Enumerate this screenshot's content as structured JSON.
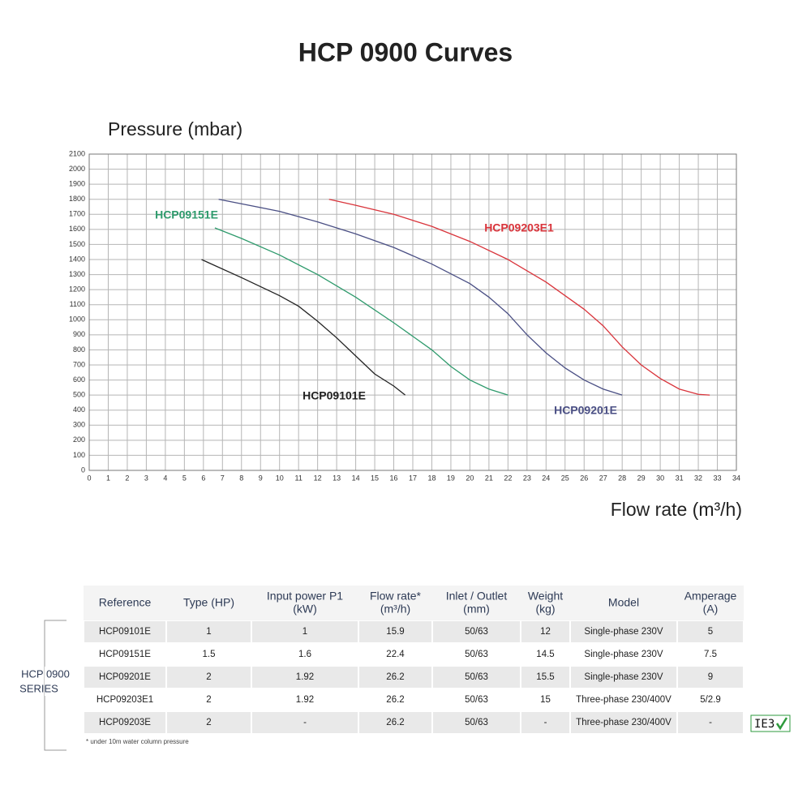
{
  "chart_data": {
    "type": "line",
    "title": "HCP 0900 Curves",
    "y_label": "Pressure (mbar)",
    "x_label": "Flow rate (m³/h)",
    "xlim": [
      0,
      34
    ],
    "xticks": [
      0,
      1,
      2,
      3,
      4,
      5,
      6,
      7,
      8,
      9,
      10,
      11,
      12,
      13,
      14,
      15,
      16,
      17,
      18,
      19,
      20,
      21,
      22,
      23,
      24,
      25,
      26,
      27,
      28,
      29,
      30,
      31,
      32,
      33,
      34
    ],
    "ylim": [
      0,
      2100
    ],
    "yticks": [
      0,
      100,
      200,
      300,
      400,
      500,
      600,
      700,
      800,
      900,
      1000,
      1100,
      1200,
      1300,
      1400,
      1500,
      1600,
      1700,
      1800,
      1900,
      2000,
      2100
    ],
    "grid": true,
    "series": [
      {
        "name": "HCP09101E",
        "color": "#222222",
        "x": [
          5.9,
          8,
          10,
          11,
          12,
          13,
          14,
          15,
          16,
          16.6
        ],
        "values": [
          1400,
          1280,
          1160,
          1090,
          990,
          880,
          760,
          640,
          560,
          500
        ]
      },
      {
        "name": "HCP09151E",
        "color": "#2e9a6c",
        "x": [
          6.6,
          8,
          10,
          12,
          14,
          16,
          18,
          19,
          20,
          21,
          22
        ],
        "values": [
          1610,
          1540,
          1430,
          1300,
          1150,
          980,
          800,
          690,
          600,
          540,
          500
        ]
      },
      {
        "name": "HCP09201E",
        "color": "#4a4f84",
        "x": [
          6.8,
          10,
          12,
          14,
          16,
          18,
          20,
          21,
          22,
          23,
          24,
          25,
          26,
          27,
          28
        ],
        "values": [
          1800,
          1720,
          1650,
          1570,
          1480,
          1370,
          1240,
          1150,
          1040,
          900,
          780,
          680,
          600,
          540,
          500
        ]
      },
      {
        "name": "HCP09203E1",
        "color": "#d9343b",
        "x": [
          12.6,
          14,
          16,
          18,
          20,
          22,
          24,
          26,
          27,
          28,
          29,
          30,
          31,
          32,
          32.6
        ],
        "values": [
          1800,
          1760,
          1700,
          1620,
          1520,
          1400,
          1250,
          1070,
          960,
          820,
          700,
          610,
          540,
          505,
          500
        ]
      }
    ]
  },
  "table": {
    "header": [
      [
        "Reference"
      ],
      [
        "Type (HP)"
      ],
      [
        "Input power P1",
        "(kW)"
      ],
      [
        "Flow rate*",
        "(m³/h)"
      ],
      [
        "Inlet / Outlet",
        "(mm)"
      ],
      [
        "Weight",
        "(kg)"
      ],
      [
        "Model"
      ],
      [
        "Amperage",
        "(A)"
      ]
    ],
    "rows": [
      [
        "HCP09101E",
        "1",
        "1",
        "15.9",
        "50/63",
        "12",
        "Single-phase 230V",
        "5"
      ],
      [
        "HCP09151E",
        "1.5",
        "1.6",
        "22.4",
        "50/63",
        "14.5",
        "Single-phase 230V",
        "7.5"
      ],
      [
        "HCP09201E",
        "2",
        "1.92",
        "26.2",
        "50/63",
        "15.5",
        "Single-phase 230V",
        "9"
      ],
      [
        "HCP09203E1",
        "2",
        "1.92",
        "26.2",
        "50/63",
        "15",
        "Three-phase 230/400V",
        "5/2.9"
      ],
      [
        "HCP09203E",
        "2",
        "-",
        "26.2",
        "50/63",
        "-",
        "Three-phase 230/400V",
        "-"
      ]
    ],
    "group_label": [
      "HCP 0900",
      "SERIES"
    ],
    "footnote": "* under 10m water column pressure",
    "badge": "IE3"
  }
}
